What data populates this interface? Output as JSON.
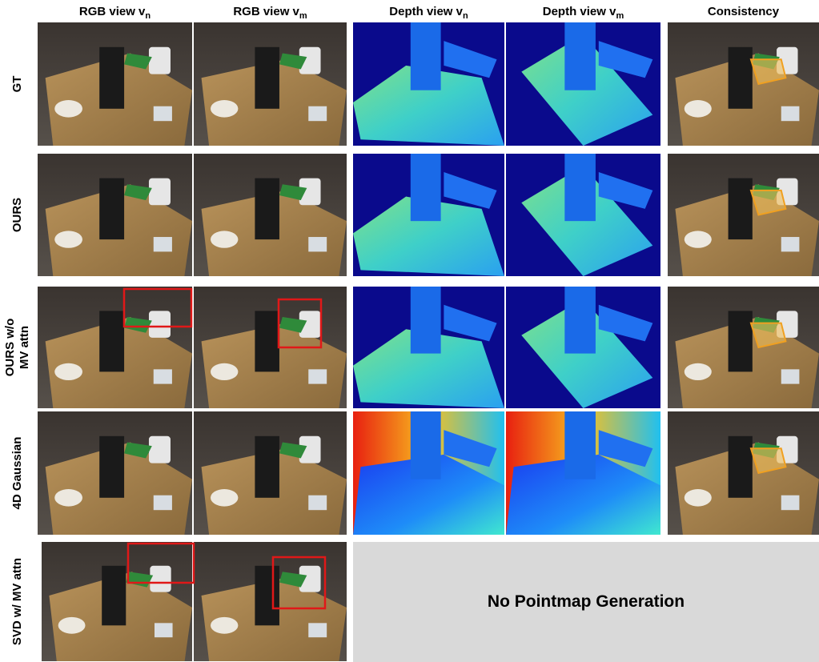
{
  "columns": [
    {
      "text": "RGB view v",
      "sub": "n"
    },
    {
      "text": "RGB view v",
      "sub": "m"
    },
    {
      "text": "Depth view v",
      "sub": "n"
    },
    {
      "text": "Depth view v",
      "sub": "m"
    },
    {
      "text": "Consistency"
    }
  ],
  "rows": [
    {
      "label": [
        "GT"
      ]
    },
    {
      "label": [
        "OURS"
      ]
    },
    {
      "label": [
        "OURS w/o",
        "MV attn"
      ]
    },
    {
      "label": [
        "4D Gaussian"
      ]
    },
    {
      "label": [
        "SVD w/ MV attn"
      ]
    }
  ],
  "placeholder": "No Pointmap Generation"
}
